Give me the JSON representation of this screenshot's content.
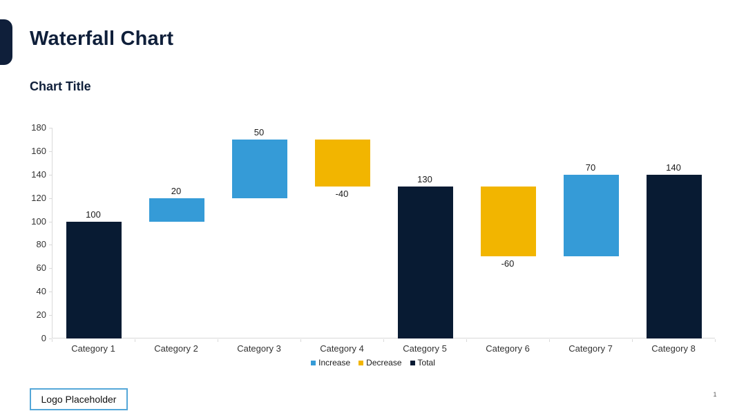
{
  "slide": {
    "title": "Waterfall Chart",
    "logo_label": "Logo Placeholder",
    "page_number": "1"
  },
  "colors": {
    "accent_navy": "#0F1F3A",
    "axis_line": "#D9D9D9",
    "logo_border": "#54A7D8",
    "increase": "#359BD7",
    "decrease": "#F2B500",
    "total": "#081B33"
  },
  "chart_data": {
    "type": "bar",
    "subtype": "waterfall",
    "title": "Chart Title",
    "categories": [
      "Category 1",
      "Category 2",
      "Category 3",
      "Category 4",
      "Category 5",
      "Category 6",
      "Category 7",
      "Category 8"
    ],
    "series": [
      {
        "name": "Increase",
        "color": "#359BD7"
      },
      {
        "name": "Decrease",
        "color": "#F2B500"
      },
      {
        "name": "Total",
        "color": "#081B33"
      }
    ],
    "bars": [
      {
        "category": "Category 1",
        "series": "Total",
        "start": 0,
        "end": 100,
        "value": 100,
        "label": "100",
        "label_position": "above"
      },
      {
        "category": "Category 2",
        "series": "Increase",
        "start": 100,
        "end": 120,
        "value": 20,
        "label": "20",
        "label_position": "above"
      },
      {
        "category": "Category 3",
        "series": "Increase",
        "start": 120,
        "end": 170,
        "value": 50,
        "label": "50",
        "label_position": "above"
      },
      {
        "category": "Category 4",
        "series": "Decrease",
        "start": 170,
        "end": 130,
        "value": -40,
        "label": "-40",
        "label_position": "below"
      },
      {
        "category": "Category 5",
        "series": "Total",
        "start": 0,
        "end": 130,
        "value": 130,
        "label": "130",
        "label_position": "above"
      },
      {
        "category": "Category 6",
        "series": "Decrease",
        "start": 130,
        "end": 70,
        "value": -60,
        "label": "-60",
        "label_position": "below"
      },
      {
        "category": "Category 7",
        "series": "Increase",
        "start": 70,
        "end": 140,
        "value": 70,
        "label": "70",
        "label_position": "above"
      },
      {
        "category": "Category 8",
        "series": "Total",
        "start": 0,
        "end": 140,
        "value": 140,
        "label": "140",
        "label_position": "above"
      }
    ],
    "ylim": [
      0,
      180
    ],
    "yticks": [
      0,
      20,
      40,
      60,
      80,
      100,
      120,
      140,
      160,
      180
    ],
    "grid": false,
    "legend": {
      "position": "bottom",
      "entries": [
        "Increase",
        "Decrease",
        "Total"
      ]
    }
  }
}
